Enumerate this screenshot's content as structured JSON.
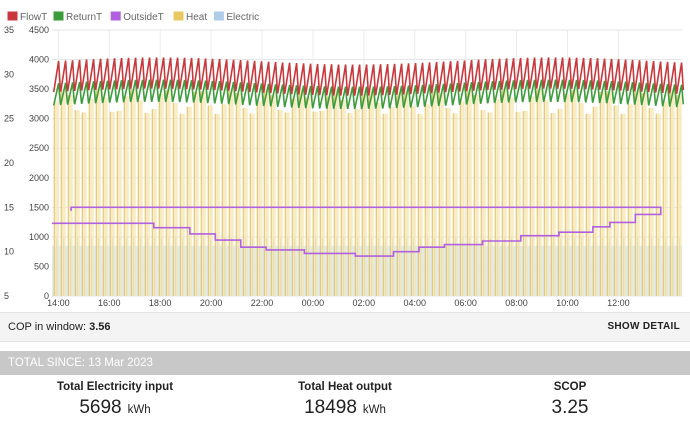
{
  "legend": [
    {
      "name": "FlowT",
      "color": "#c8383c"
    },
    {
      "name": "ReturnT",
      "color": "#3c9c3c"
    },
    {
      "name": "OutsideT",
      "color": "#b060e0"
    },
    {
      "name": "Heat",
      "color": "#e8c860"
    },
    {
      "name": "Electric",
      "color": "#b0cce8"
    }
  ],
  "chart_data": {
    "type": "line",
    "x_ticks": [
      "16:00",
      "18:00",
      "20:00",
      "22:00",
      "00:00",
      "02:00",
      "04:00",
      "06:00",
      "08:00",
      "10:00",
      "12:00",
      "14:00"
    ],
    "x_range": [
      "13:45",
      "14:30"
    ],
    "y_left_ticks": [
      "35",
      "30",
      "25",
      "20",
      "15",
      "10",
      "5"
    ],
    "y_left_range": [
      5,
      35
    ],
    "y_right_ticks": [
      "4500",
      "4000",
      "3500",
      "3000",
      "2500",
      "2000",
      "1500",
      "1000",
      "500",
      "0"
    ],
    "y_right_range": [
      0,
      4500
    ],
    "grid": true,
    "legend_position": "top-left",
    "series": [
      {
        "name": "FlowT",
        "axis": "left",
        "approx_range": [
          28,
          31.5
        ]
      },
      {
        "name": "ReturnT",
        "axis": "left",
        "approx_range": [
          26.5,
          29
        ]
      },
      {
        "name": "OutsideT",
        "axis": "left",
        "points": [
          [
            "13:45",
            13.2
          ],
          [
            "15:45",
            13.2
          ],
          [
            "17:45",
            12.7
          ],
          [
            "19:10",
            12.0
          ],
          [
            "20:10",
            11.3
          ],
          [
            "21:10",
            10.5
          ],
          [
            "22:10",
            10.2
          ],
          [
            "23:40",
            9.8
          ],
          [
            "01:40",
            9.5
          ],
          [
            "03:10",
            10.0
          ],
          [
            "04:10",
            10.5
          ],
          [
            "05:10",
            10.8
          ],
          [
            "06:40",
            11.2
          ],
          [
            "08:10",
            11.8
          ],
          [
            "09:40",
            12.2
          ],
          [
            "11:00",
            12.8
          ],
          [
            "11:40",
            13.3
          ],
          [
            "12:40",
            14.2
          ],
          [
            "13:40",
            15.0
          ],
          [
            "14:30",
            14.6
          ]
        ]
      },
      {
        "name": "Heat",
        "axis": "right",
        "approx_peak": 3500
      },
      {
        "name": "Electric",
        "axis": "right",
        "approx_level": 850
      }
    ]
  },
  "cop": {
    "label": "COP in window:",
    "value": "3.56",
    "show_detail": "SHOW DETAIL"
  },
  "totals": {
    "header": "TOTAL SINCE: 13 Mar 2023",
    "electricity": {
      "label": "Total Electricity input",
      "value": "5698",
      "unit": "kWh"
    },
    "heat": {
      "label": "Total Heat output",
      "value": "18498",
      "unit": "kWh"
    },
    "scop": {
      "label": "SCOP",
      "value": "3.25"
    }
  }
}
